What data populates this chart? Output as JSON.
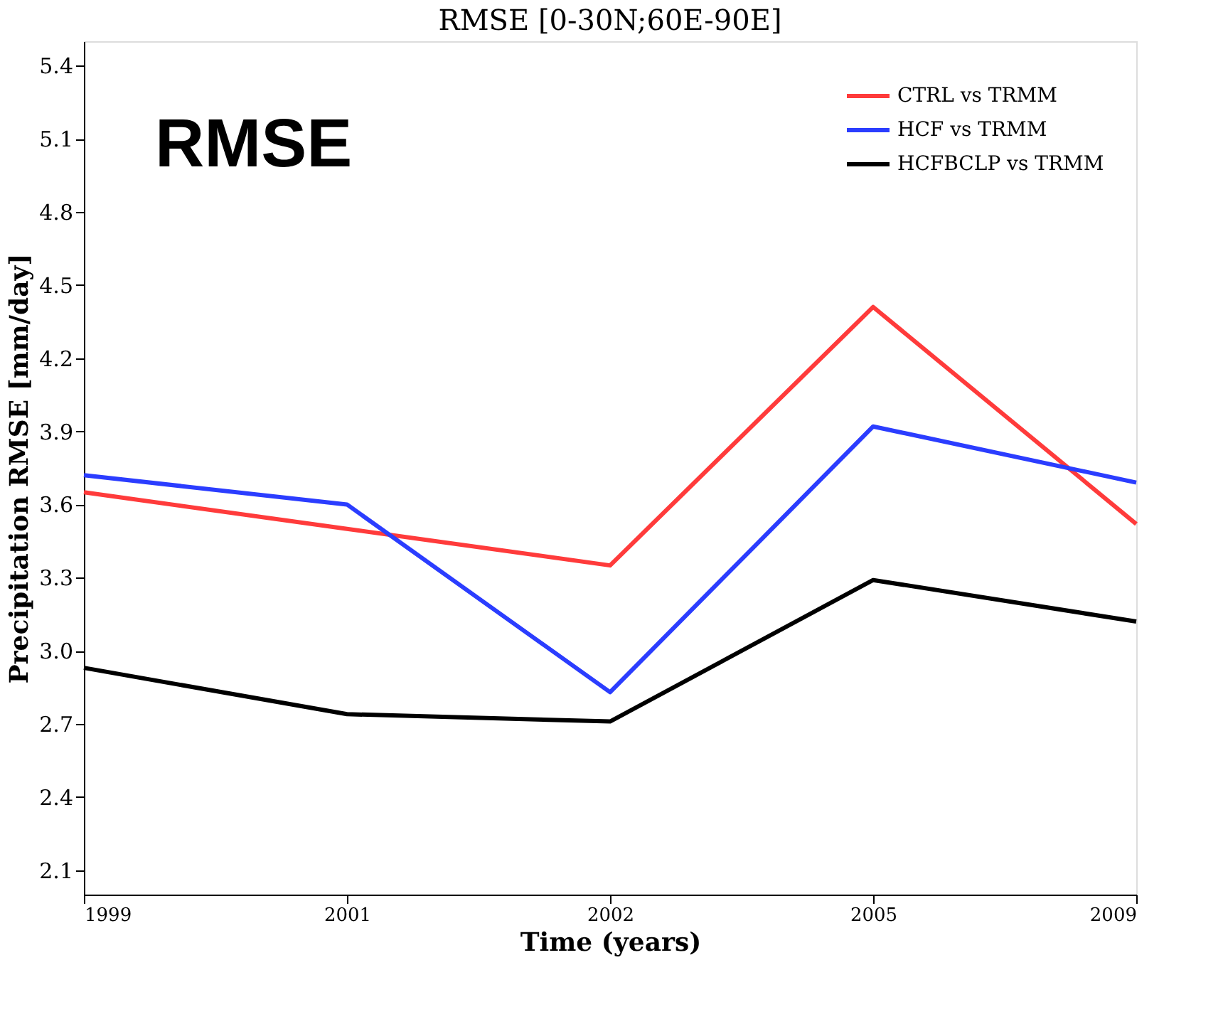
{
  "chart_data": {
    "type": "line",
    "title": "RMSE [0-30N;60E-90E]",
    "xlabel": "Time (years)",
    "ylabel": "Precipitation RMSE [mm/day]",
    "categories": [
      "1999",
      "2001",
      "2002",
      "2005",
      "2009"
    ],
    "series": [
      {
        "name": "CTRL vs TRMM",
        "color": "#ff3b3b",
        "values": [
          3.65,
          3.5,
          3.35,
          4.41,
          3.52
        ]
      },
      {
        "name": "HCF vs TRMM",
        "color": "#2b3dff",
        "values": [
          3.72,
          3.6,
          2.83,
          3.92,
          3.69
        ]
      },
      {
        "name": "HCFBCLP vs TRMM",
        "color": "#000000",
        "values": [
          2.93,
          2.74,
          2.71,
          3.29,
          3.12
        ]
      }
    ],
    "ylim": [
      2.0,
      5.5
    ],
    "yticks": [
      2.1,
      2.4,
      2.7,
      {
        "value": 3,
        "label": "3.0"
      },
      3.3,
      3.6,
      3.9,
      4.2,
      4.5,
      4.8,
      5.1,
      5.4
    ],
    "annotations": [
      "RMSE"
    ],
    "grid": false,
    "legend": "top right",
    "marker": "none",
    "line_style": "solid"
  }
}
